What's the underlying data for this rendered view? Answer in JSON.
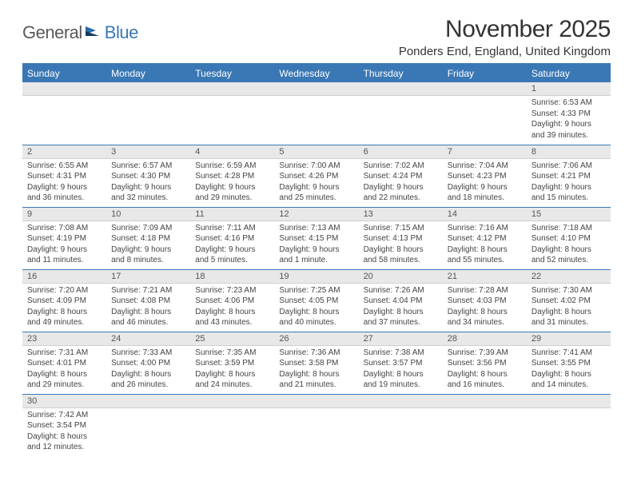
{
  "logo": {
    "part1": "General",
    "part2": "Blue"
  },
  "title": "November 2025",
  "location": "Ponders End, England, United Kingdom",
  "colors": {
    "header_bg": "#3a78b5",
    "header_text": "#ffffff",
    "daynum_bg": "#e8e8e8",
    "border": "#3a78b5",
    "logo_gray": "#5a5a5a",
    "logo_blue": "#3a78b5"
  },
  "weekdays": [
    "Sunday",
    "Monday",
    "Tuesday",
    "Wednesday",
    "Thursday",
    "Friday",
    "Saturday"
  ],
  "weeks": [
    [
      {
        "n": "",
        "lines": []
      },
      {
        "n": "",
        "lines": []
      },
      {
        "n": "",
        "lines": []
      },
      {
        "n": "",
        "lines": []
      },
      {
        "n": "",
        "lines": []
      },
      {
        "n": "",
        "lines": []
      },
      {
        "n": "1",
        "lines": [
          "Sunrise: 6:53 AM",
          "Sunset: 4:33 PM",
          "Daylight: 9 hours",
          "and 39 minutes."
        ]
      }
    ],
    [
      {
        "n": "2",
        "lines": [
          "Sunrise: 6:55 AM",
          "Sunset: 4:31 PM",
          "Daylight: 9 hours",
          "and 36 minutes."
        ]
      },
      {
        "n": "3",
        "lines": [
          "Sunrise: 6:57 AM",
          "Sunset: 4:30 PM",
          "Daylight: 9 hours",
          "and 32 minutes."
        ]
      },
      {
        "n": "4",
        "lines": [
          "Sunrise: 6:59 AM",
          "Sunset: 4:28 PM",
          "Daylight: 9 hours",
          "and 29 minutes."
        ]
      },
      {
        "n": "5",
        "lines": [
          "Sunrise: 7:00 AM",
          "Sunset: 4:26 PM",
          "Daylight: 9 hours",
          "and 25 minutes."
        ]
      },
      {
        "n": "6",
        "lines": [
          "Sunrise: 7:02 AM",
          "Sunset: 4:24 PM",
          "Daylight: 9 hours",
          "and 22 minutes."
        ]
      },
      {
        "n": "7",
        "lines": [
          "Sunrise: 7:04 AM",
          "Sunset: 4:23 PM",
          "Daylight: 9 hours",
          "and 18 minutes."
        ]
      },
      {
        "n": "8",
        "lines": [
          "Sunrise: 7:06 AM",
          "Sunset: 4:21 PM",
          "Daylight: 9 hours",
          "and 15 minutes."
        ]
      }
    ],
    [
      {
        "n": "9",
        "lines": [
          "Sunrise: 7:08 AM",
          "Sunset: 4:19 PM",
          "Daylight: 9 hours",
          "and 11 minutes."
        ]
      },
      {
        "n": "10",
        "lines": [
          "Sunrise: 7:09 AM",
          "Sunset: 4:18 PM",
          "Daylight: 9 hours",
          "and 8 minutes."
        ]
      },
      {
        "n": "11",
        "lines": [
          "Sunrise: 7:11 AM",
          "Sunset: 4:16 PM",
          "Daylight: 9 hours",
          "and 5 minutes."
        ]
      },
      {
        "n": "12",
        "lines": [
          "Sunrise: 7:13 AM",
          "Sunset: 4:15 PM",
          "Daylight: 9 hours",
          "and 1 minute."
        ]
      },
      {
        "n": "13",
        "lines": [
          "Sunrise: 7:15 AM",
          "Sunset: 4:13 PM",
          "Daylight: 8 hours",
          "and 58 minutes."
        ]
      },
      {
        "n": "14",
        "lines": [
          "Sunrise: 7:16 AM",
          "Sunset: 4:12 PM",
          "Daylight: 8 hours",
          "and 55 minutes."
        ]
      },
      {
        "n": "15",
        "lines": [
          "Sunrise: 7:18 AM",
          "Sunset: 4:10 PM",
          "Daylight: 8 hours",
          "and 52 minutes."
        ]
      }
    ],
    [
      {
        "n": "16",
        "lines": [
          "Sunrise: 7:20 AM",
          "Sunset: 4:09 PM",
          "Daylight: 8 hours",
          "and 49 minutes."
        ]
      },
      {
        "n": "17",
        "lines": [
          "Sunrise: 7:21 AM",
          "Sunset: 4:08 PM",
          "Daylight: 8 hours",
          "and 46 minutes."
        ]
      },
      {
        "n": "18",
        "lines": [
          "Sunrise: 7:23 AM",
          "Sunset: 4:06 PM",
          "Daylight: 8 hours",
          "and 43 minutes."
        ]
      },
      {
        "n": "19",
        "lines": [
          "Sunrise: 7:25 AM",
          "Sunset: 4:05 PM",
          "Daylight: 8 hours",
          "and 40 minutes."
        ]
      },
      {
        "n": "20",
        "lines": [
          "Sunrise: 7:26 AM",
          "Sunset: 4:04 PM",
          "Daylight: 8 hours",
          "and 37 minutes."
        ]
      },
      {
        "n": "21",
        "lines": [
          "Sunrise: 7:28 AM",
          "Sunset: 4:03 PM",
          "Daylight: 8 hours",
          "and 34 minutes."
        ]
      },
      {
        "n": "22",
        "lines": [
          "Sunrise: 7:30 AM",
          "Sunset: 4:02 PM",
          "Daylight: 8 hours",
          "and 31 minutes."
        ]
      }
    ],
    [
      {
        "n": "23",
        "lines": [
          "Sunrise: 7:31 AM",
          "Sunset: 4:01 PM",
          "Daylight: 8 hours",
          "and 29 minutes."
        ]
      },
      {
        "n": "24",
        "lines": [
          "Sunrise: 7:33 AM",
          "Sunset: 4:00 PM",
          "Daylight: 8 hours",
          "and 26 minutes."
        ]
      },
      {
        "n": "25",
        "lines": [
          "Sunrise: 7:35 AM",
          "Sunset: 3:59 PM",
          "Daylight: 8 hours",
          "and 24 minutes."
        ]
      },
      {
        "n": "26",
        "lines": [
          "Sunrise: 7:36 AM",
          "Sunset: 3:58 PM",
          "Daylight: 8 hours",
          "and 21 minutes."
        ]
      },
      {
        "n": "27",
        "lines": [
          "Sunrise: 7:38 AM",
          "Sunset: 3:57 PM",
          "Daylight: 8 hours",
          "and 19 minutes."
        ]
      },
      {
        "n": "28",
        "lines": [
          "Sunrise: 7:39 AM",
          "Sunset: 3:56 PM",
          "Daylight: 8 hours",
          "and 16 minutes."
        ]
      },
      {
        "n": "29",
        "lines": [
          "Sunrise: 7:41 AM",
          "Sunset: 3:55 PM",
          "Daylight: 8 hours",
          "and 14 minutes."
        ]
      }
    ],
    [
      {
        "n": "30",
        "lines": [
          "Sunrise: 7:42 AM",
          "Sunset: 3:54 PM",
          "Daylight: 8 hours",
          "and 12 minutes."
        ]
      },
      {
        "n": "",
        "lines": []
      },
      {
        "n": "",
        "lines": []
      },
      {
        "n": "",
        "lines": []
      },
      {
        "n": "",
        "lines": []
      },
      {
        "n": "",
        "lines": []
      },
      {
        "n": "",
        "lines": []
      }
    ]
  ]
}
